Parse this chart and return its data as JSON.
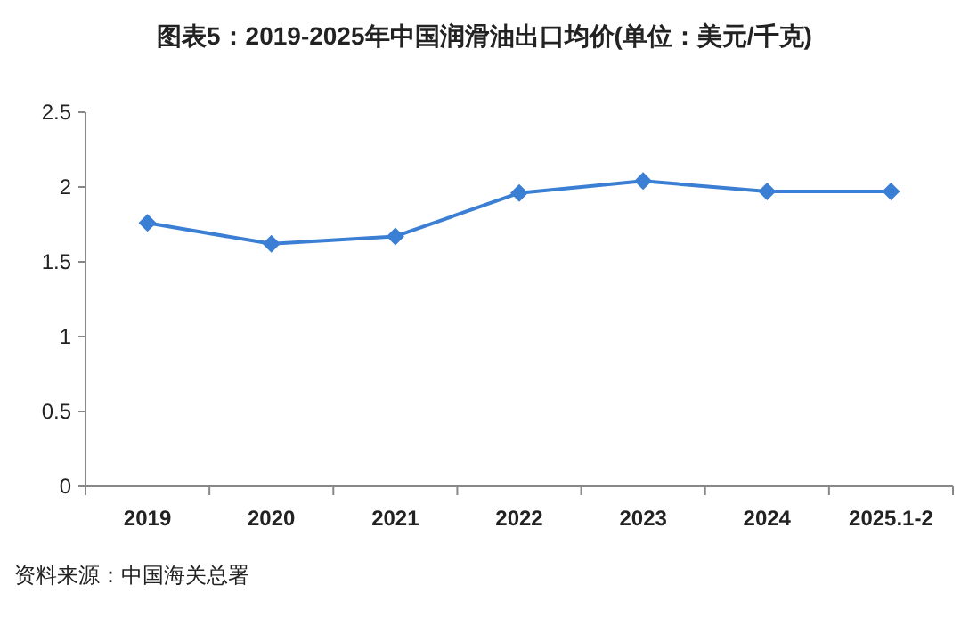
{
  "chart_data": {
    "type": "line",
    "title": "图表5：2019-2025年中国润滑油出口均价(单位：美元/千克)",
    "categories": [
      "2019",
      "2020",
      "2021",
      "2022",
      "2023",
      "2024",
      "2025.1-2"
    ],
    "series": [
      {
        "color": "#3b7fd4",
        "values": [
          1.76,
          1.62,
          1.67,
          1.96,
          2.04,
          1.97,
          1.97
        ]
      }
    ],
    "ylim": [
      0,
      2.5
    ],
    "yticks": [
      0,
      0.5,
      1,
      1.5,
      2,
      2.5
    ],
    "grid": false,
    "marker": "diamond",
    "line_style": "solid",
    "annotations": [
      "资料来源：中国海关总署"
    ]
  }
}
